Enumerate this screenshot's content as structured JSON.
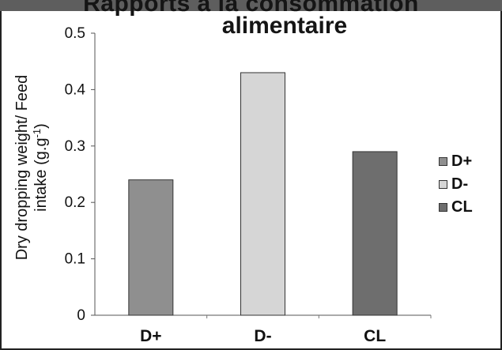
{
  "chart_data": {
    "type": "bar",
    "title_line1": "Rapports à la consommation",
    "title_line2": "alimentaire",
    "ylabel_line1": "Dry dropping weight/ Feed",
    "ylabel_line2_prefix": "intake (g.g",
    "ylabel_line2_sup": "-1",
    "ylabel_line2_suffix": ")",
    "categories": [
      "D+",
      "D-",
      "CL"
    ],
    "values": [
      0.24,
      0.43,
      0.29
    ],
    "ylim": [
      0,
      0.5
    ],
    "yticks": [
      "0",
      "0.1",
      "0.2",
      "0.3",
      "0.4",
      "0.5"
    ],
    "colors": [
      "#8f8f8f",
      "#d6d6d6",
      "#6e6e6e"
    ],
    "grid": false,
    "legend_placement": "right",
    "legend": [
      {
        "label": "D+",
        "color": "#8f8f8f"
      },
      {
        "label": "D-",
        "color": "#d6d6d6"
      },
      {
        "label": "CL",
        "color": "#6e6e6e"
      }
    ]
  }
}
